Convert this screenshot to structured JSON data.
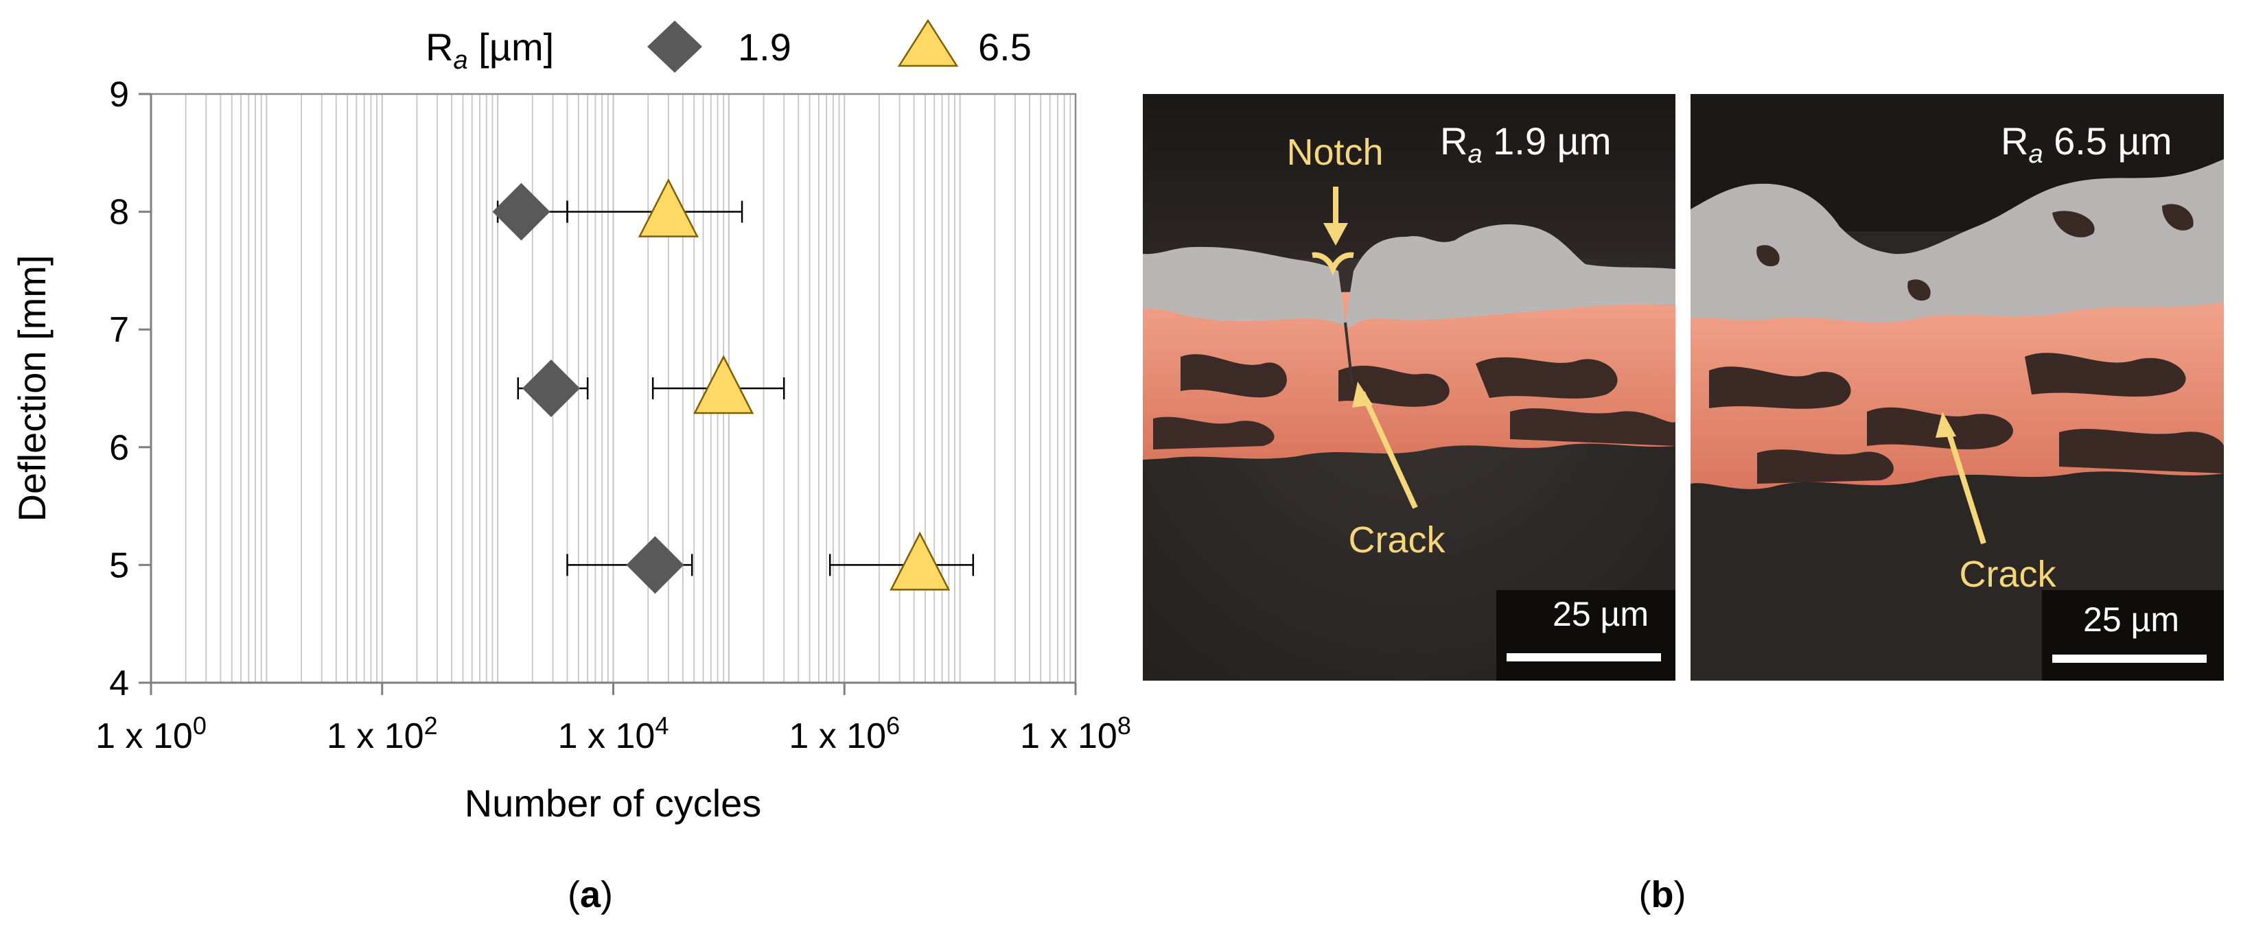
{
  "chart_data": {
    "type": "scatter",
    "xscale": "log",
    "xlim": [
      1,
      100000000
    ],
    "ylim": [
      4,
      9
    ],
    "xticks": [
      {
        "value": 1,
        "base": "1 x 10",
        "exp": "0"
      },
      {
        "value": 100,
        "base": "1 x 10",
        "exp": "2"
      },
      {
        "value": 10000,
        "base": "1 x 10",
        "exp": "4"
      },
      {
        "value": 1000000,
        "base": "1 x 10",
        "exp": "6"
      },
      {
        "value": 100000000,
        "base": "1 x 10",
        "exp": "8"
      }
    ],
    "yticks": [
      "4",
      "5",
      "6",
      "7",
      "8",
      "9"
    ],
    "xlabel": "Number of cycles",
    "ylabel": "Deflection [mm]",
    "grid": "vertical minor and major lines on log x-axis",
    "legend": {
      "title_main": "R",
      "title_sub": "a",
      "title_unit": " [µm]",
      "placement": "top"
    },
    "series": [
      {
        "name": "1.9",
        "marker": "diamond",
        "color": "#595959",
        "points": [
          {
            "y": 8,
            "x": 1600,
            "xmin": 1000,
            "xmax": 4000
          },
          {
            "y": 6.5,
            "x": 2900,
            "xmin": 1500,
            "xmax": 6000
          },
          {
            "y": 5,
            "x": 23000,
            "xmin": 4000,
            "xmax": 48000
          }
        ]
      },
      {
        "name": "6.5",
        "marker": "triangle",
        "color": "#FFD966",
        "points": [
          {
            "y": 8,
            "x": 30000,
            "xmin": 4000,
            "xmax": 130000
          },
          {
            "y": 6.5,
            "x": 90000,
            "xmin": 22000,
            "xmax": 300000
          },
          {
            "y": 5,
            "x": 4500000,
            "xmin": 750000,
            "xmax": 13000000
          }
        ]
      }
    ]
  },
  "panel_a_label": "a",
  "panel_b_label": "b",
  "micrographs": [
    {
      "ra_main": "R",
      "ra_sub": "a",
      "ra_value": " 1.9 µm",
      "notch_label": "Notch",
      "crack_label": "Crack",
      "scale_label": "25 µm"
    },
    {
      "ra_main": "R",
      "ra_sub": "a",
      "ra_value": " 6.5 µm",
      "crack_label": "Crack",
      "scale_label": "25 µm"
    }
  ],
  "colors": {
    "annotation": "#F6D67A",
    "copper": "#E8927A",
    "coating_gray": "#B9B6B5",
    "background_dark": "#2A2624"
  }
}
